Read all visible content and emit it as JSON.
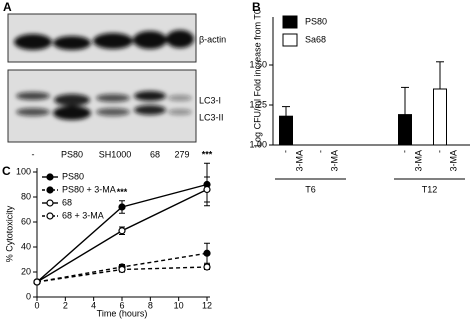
{
  "blot": {
    "panel_label": "A",
    "bands": [
      "β-actin",
      "LC3-I",
      "LC3-II"
    ],
    "lanes": [
      "-",
      "PS80",
      "SH1000",
      "68",
      "279"
    ]
  },
  "chart_data": [
    {
      "type": "bar",
      "panel_label": "B",
      "ylabel": "Log CFU/ml Fold increase from T0",
      "ylim": [
        1,
        1.8
      ],
      "yticks": [
        {
          "value": 1,
          "label": "1.00"
        },
        {
          "value": 1.25,
          "label": "1.25"
        },
        {
          "value": 1.5,
          "label": "1.50"
        }
      ],
      "categories": [
        "-",
        "3-MA",
        "-",
        "3-MA",
        "-",
        "3-MA",
        "-",
        "3-MA"
      ],
      "groups": [
        "T6",
        "T12"
      ],
      "series": [
        {
          "name": "PS80",
          "color": "#000000",
          "values": [
            1.18,
            null,
            null,
            null,
            1.19,
            null,
            null,
            null
          ],
          "errors": [
            0.06,
            null,
            null,
            null,
            0.17,
            null,
            null,
            null
          ]
        },
        {
          "name": "Sa68",
          "color": "#ffffff",
          "values": [
            null,
            null,
            null,
            null,
            null,
            null,
            1.35,
            null
          ],
          "errors": [
            null,
            null,
            null,
            null,
            null,
            null,
            0.17,
            null
          ]
        }
      ],
      "legend": "upper left"
    },
    {
      "type": "line",
      "panel_label": "C",
      "xlabel": "Time (hours)",
      "ylabel": "% Cytotoxicity",
      "x": [
        0,
        6,
        12
      ],
      "xlim": [
        0,
        12
      ],
      "xticks": [
        0,
        2,
        4,
        6,
        8,
        10,
        12
      ],
      "ylim": [
        0,
        100
      ],
      "yticks": [
        0,
        20,
        40,
        60,
        80,
        100
      ],
      "series": [
        {
          "name": "PS80",
          "color": "#000000",
          "dashed": false,
          "marker": "filled",
          "values": [
            12,
            72,
            90
          ],
          "errors": [
            1,
            5,
            17
          ]
        },
        {
          "name": "PS80 + 3-MA",
          "color": "#000000",
          "dashed": true,
          "marker": "filled",
          "values": [
            12,
            24,
            35
          ],
          "errors": [
            1,
            2,
            8
          ]
        },
        {
          "name": "68",
          "color": "#000000",
          "dashed": false,
          "marker": "open",
          "values": [
            12,
            53,
            86
          ],
          "errors": [
            1,
            3,
            10
          ]
        },
        {
          "name": "68 + 3-MA",
          "color": "#000000",
          "dashed": true,
          "marker": "open",
          "values": [
            12,
            22,
            24
          ],
          "errors": [
            1,
            2,
            2
          ]
        }
      ],
      "annotations": [
        {
          "text": "***",
          "x": 6
        },
        {
          "text": "***",
          "x": 12
        }
      ],
      "legend": "upper left"
    }
  ]
}
